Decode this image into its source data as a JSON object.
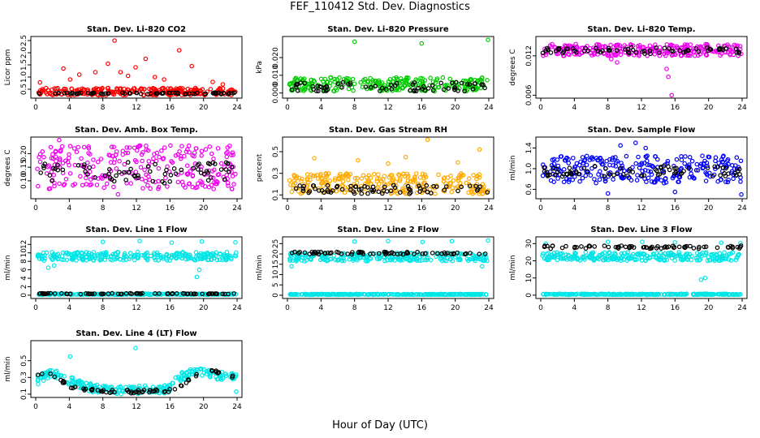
{
  "page": {
    "title": "FEF_110412  Std. Dev. Diagnostics",
    "xlabel": "Hour of Day (UTC)"
  },
  "chart_data": [
    {
      "type": "scatter",
      "title": "Stan. Dev. Li-820 CO2",
      "ylabel": "Licor ppm",
      "xlim": [
        0,
        24
      ],
      "ylim": [
        0.2,
        2.6
      ],
      "xticks": [
        "0",
        "4",
        "8",
        "12",
        "16",
        "20",
        "24"
      ],
      "yticks": [
        "0.5",
        "1.0",
        "1.5",
        "2.0",
        "2.5"
      ],
      "series": [
        {
          "color": "#ff0000",
          "band": [
            0.25,
            0.55
          ],
          "outliers": [
            [
              0.5,
              0.78
            ],
            [
              3.3,
              1.35
            ],
            [
              4.1,
              0.9
            ],
            [
              5.2,
              1.1
            ],
            [
              7.1,
              1.2
            ],
            [
              8.6,
              1.55
            ],
            [
              9.4,
              2.5
            ],
            [
              10.1,
              1.2
            ],
            [
              11.0,
              1.05
            ],
            [
              11.9,
              1.4
            ],
            [
              13.1,
              1.75
            ],
            [
              14.2,
              1.0
            ],
            [
              15.3,
              0.9
            ],
            [
              17.1,
              2.1
            ],
            [
              18.6,
              1.45
            ],
            [
              21.1,
              0.8
            ],
            [
              22.3,
              0.7
            ]
          ]
        },
        {
          "color": "#000000",
          "band": [
            0.3,
            0.36
          ],
          "outliers": []
        }
      ]
    },
    {
      "type": "scatter",
      "title": "Stan. Dev. Li-820 Pressure",
      "ylabel": "kPa",
      "xlim": [
        0,
        24
      ],
      "ylim": [
        -0.002,
        0.031
      ],
      "xticks": [
        "0",
        "4",
        "8",
        "12",
        "16",
        "20",
        "24"
      ],
      "yticks": [
        "0.000",
        "0.010",
        "0.020"
      ],
      "series": [
        {
          "color": "#00cc00",
          "band": [
            0.001,
            0.009
          ],
          "outliers": [
            [
              8.0,
              0.029
            ],
            [
              16.0,
              0.028
            ],
            [
              23.9,
              0.03
            ]
          ]
        },
        {
          "color": "#000000",
          "band": [
            0.001,
            0.006
          ],
          "outliers": []
        }
      ]
    },
    {
      "type": "scatter",
      "title": "Stan. Dev. Li-820 Temp.",
      "ylabel": "degrees C",
      "xlim": [
        0,
        24
      ],
      "ylim": [
        0.0058,
        0.0147
      ],
      "xticks": [
        "0",
        "4",
        "8",
        "12",
        "16",
        "20",
        "24"
      ],
      "yticks": [
        "0.006",
        "0.012"
      ],
      "series": [
        {
          "color": "#ee00ee",
          "band": [
            0.012,
            0.0138
          ],
          "outliers": [
            [
              8.4,
              0.0115
            ],
            [
              9.1,
              0.011
            ],
            [
              15.2,
              0.0088
            ],
            [
              15.6,
              0.006
            ],
            [
              15.0,
              0.01
            ]
          ]
        },
        {
          "color": "#000000",
          "band": [
            0.0123,
            0.0133
          ],
          "outliers": []
        }
      ]
    },
    {
      "type": "scatter",
      "title": "Stan. Dev. Amb. Box Temp.",
      "ylabel": "degrees C",
      "xlim": [
        0,
        24
      ],
      "ylim": [
        0.04,
        0.255
      ],
      "xticks": [
        "0",
        "4",
        "8",
        "12",
        "16",
        "20",
        "24"
      ],
      "yticks": [
        "0.10",
        "0.15",
        "0.20"
      ],
      "series": [
        {
          "color": "#ee00ee",
          "band": [
            0.07,
            0.23
          ],
          "outliers": [
            [
              2.8,
              0.25
            ],
            [
              9.8,
              0.05
            ],
            [
              21.2,
              0.07
            ],
            [
              23.4,
              0.07
            ]
          ]
        },
        {
          "color": "#000000",
          "band": [
            0.09,
            0.17
          ],
          "outliers": []
        }
      ]
    },
    {
      "type": "scatter",
      "title": "Stan. Dev. Gas Stream RH",
      "ylabel": "percent",
      "xlim": [
        0,
        24
      ],
      "ylim": [
        0.08,
        0.62
      ],
      "xticks": [
        "0",
        "4",
        "8",
        "12",
        "16",
        "20",
        "24"
      ],
      "yticks": [
        "0.1",
        "0.3",
        "0.5"
      ],
      "series": [
        {
          "color": "#ffaa00",
          "band": [
            0.11,
            0.3
          ],
          "outliers": [
            [
              3.2,
              0.44
            ],
            [
              8.4,
              0.42
            ],
            [
              12.0,
              0.39
            ],
            [
              14.1,
              0.45
            ],
            [
              16.7,
              0.61
            ],
            [
              20.3,
              0.4
            ],
            [
              22.9,
              0.52
            ]
          ]
        },
        {
          "color": "#000000",
          "band": [
            0.11,
            0.19
          ],
          "outliers": []
        }
      ]
    },
    {
      "type": "scatter",
      "title": "Stan. Dev. Sample Flow",
      "ylabel": "ml/min",
      "xlim": [
        0,
        24
      ],
      "ylim": [
        0.45,
        1.58
      ],
      "xticks": [
        "0",
        "4",
        "8",
        "12",
        "16",
        "20",
        "24"
      ],
      "yticks": [
        "0.6",
        "1.0",
        "1.4"
      ],
      "series": [
        {
          "color": "#0000ff",
          "band": [
            0.72,
            1.25
          ],
          "outliers": [
            [
              8.0,
              0.52
            ],
            [
              9.5,
              1.45
            ],
            [
              11.3,
              1.5
            ],
            [
              16.0,
              0.55
            ],
            [
              23.9,
              0.5
            ],
            [
              12.5,
              1.4
            ]
          ]
        },
        {
          "color": "#000000",
          "band": [
            0.85,
            1.05
          ],
          "outliers": []
        }
      ]
    },
    {
      "type": "scatter",
      "title": "Stan. Dev. Line 1 Flow",
      "ylabel": "ml/min",
      "xlim": [
        0,
        24
      ],
      "ylim": [
        -0.4,
        13.4
      ],
      "xticks": [
        "0",
        "4",
        "8",
        "12",
        "16",
        "20",
        "24"
      ],
      "yticks": [
        "0",
        "2",
        "4",
        "6",
        "8",
        "10",
        "12"
      ],
      "series": [
        {
          "color": "#00e5e5",
          "band": [
            8.2,
            10.2
          ],
          "outliers": [
            [
              1.5,
              6.5
            ],
            [
              8.0,
              12.6
            ],
            [
              12.4,
              12.8
            ],
            [
              16.2,
              12.4
            ],
            [
              19.2,
              4.3
            ],
            [
              19.8,
              12.7
            ],
            [
              23.8,
              12.5
            ],
            [
              2.2,
              7.0
            ],
            [
              19.5,
              6.0
            ]
          ]
        },
        {
          "color": "#00e5e5",
          "band": [
            0.1,
            0.35
          ],
          "outliers": []
        },
        {
          "color": "#000000",
          "band": [
            0.25,
            0.45
          ],
          "outliers": []
        }
      ]
    },
    {
      "type": "scatter",
      "title": "Stan. Dev. Line 2 Flow",
      "ylabel": "ml/min",
      "xlim": [
        0,
        24
      ],
      "ylim": [
        -0.8,
        27.5
      ],
      "xticks": [
        "0",
        "4",
        "8",
        "12",
        "16",
        "20",
        "24"
      ],
      "yticks": [
        "0",
        "5",
        "10",
        "15",
        "20",
        "25"
      ],
      "series": [
        {
          "color": "#00e5e5",
          "band": [
            16.5,
            20.5
          ],
          "outliers": [
            [
              0.5,
              14.0
            ],
            [
              8.0,
              26.0
            ],
            [
              12.0,
              26.3
            ],
            [
              16.1,
              25.8
            ],
            [
              19.6,
              26.2
            ],
            [
              23.9,
              26.5
            ],
            [
              23.2,
              14.0
            ]
          ]
        },
        {
          "color": "#00e5e5",
          "band": [
            0.2,
            0.6
          ],
          "outliers": []
        },
        {
          "color": "#000000",
          "band": [
            19.8,
            21.0
          ],
          "outliers": []
        }
      ]
    },
    {
      "type": "scatter",
      "title": "Stan. Dev. Line 3 Flow",
      "ylabel": "ml/min",
      "xlim": [
        0,
        24
      ],
      "ylim": [
        -1.0,
        33.0
      ],
      "xticks": [
        "0",
        "4",
        "8",
        "12",
        "16",
        "20",
        "24"
      ],
      "yticks": [
        "0",
        "10",
        "20",
        "30"
      ],
      "series": [
        {
          "color": "#00e5e5",
          "band": [
            20.0,
            25.0
          ],
          "outliers": [
            [
              0.6,
              30.0
            ],
            [
              8.0,
              31.0
            ],
            [
              12.1,
              31.0
            ],
            [
              16.0,
              30.7
            ],
            [
              19.1,
              9.0
            ],
            [
              19.6,
              10.0
            ],
            [
              21.5,
              30.5
            ],
            [
              23.8,
              30.2
            ]
          ]
        },
        {
          "color": "#00e5e5",
          "band": [
            0.2,
            0.8
          ],
          "outliers": []
        },
        {
          "color": "#000000",
          "band": [
            27.0,
            28.8
          ],
          "outliers": []
        }
      ]
    },
    {
      "type": "scatter",
      "title": "Stan. Dev. Line 4 (LT) Flow",
      "ylabel": "ml/min",
      "xlim": [
        0,
        24
      ],
      "ylim": [
        0.08,
        0.72
      ],
      "xticks": [
        "0",
        "4",
        "8",
        "12",
        "16",
        "20",
        "24"
      ],
      "yticks": [
        "0.1",
        "0.3",
        "0.5"
      ],
      "series": [
        {
          "color": "#00e5e5",
          "band_profile": [
            [
              0,
              0.27
            ],
            [
              2,
              0.36
            ],
            [
              4,
              0.26
            ],
            [
              6,
              0.19
            ],
            [
              8,
              0.15
            ],
            [
              12,
              0.15
            ],
            [
              16,
              0.16
            ],
            [
              17,
              0.3
            ],
            [
              19,
              0.37
            ],
            [
              21,
              0.33
            ],
            [
              24,
              0.3
            ]
          ],
          "spread": 0.05,
          "outliers": [
            [
              4.1,
              0.55
            ],
            [
              11.9,
              0.65
            ],
            [
              23.9,
              0.13
            ],
            [
              0.3,
              0.22
            ]
          ]
        },
        {
          "color": "#000000",
          "band_profile": [
            [
              0,
              0.32
            ],
            [
              2,
              0.33
            ],
            [
              4,
              0.2
            ],
            [
              6,
              0.15
            ],
            [
              8,
              0.13
            ],
            [
              12,
              0.13
            ],
            [
              16,
              0.14
            ],
            [
              18,
              0.25
            ],
            [
              20,
              0.38
            ],
            [
              22,
              0.36
            ],
            [
              24,
              0.3
            ]
          ],
          "spread": 0.02,
          "outliers": []
        }
      ]
    }
  ]
}
